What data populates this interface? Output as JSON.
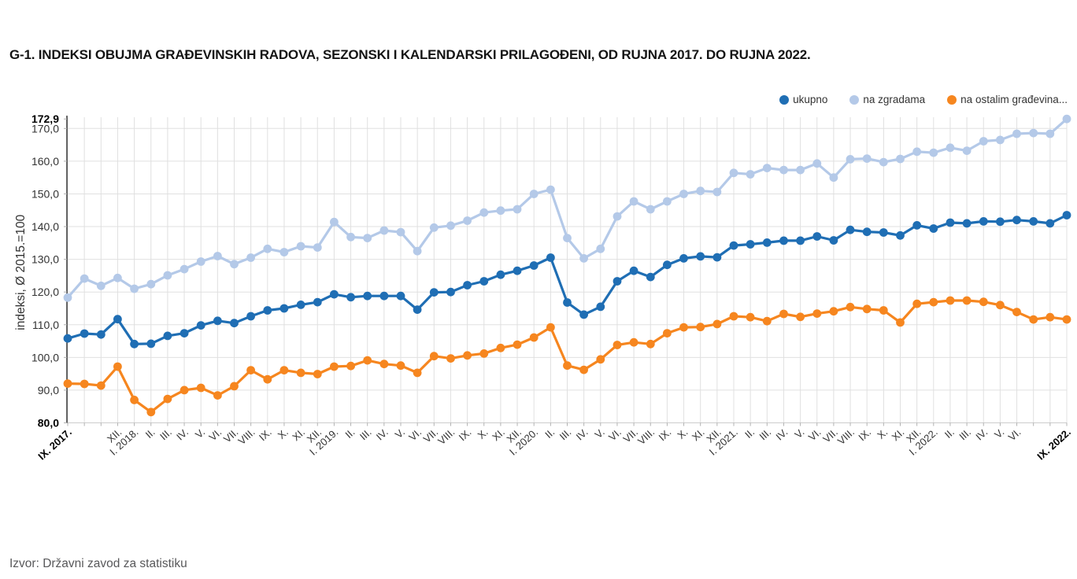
{
  "footer": {
    "source": "Izvor: Državni zavod za statistiku"
  },
  "chart_data": {
    "type": "line",
    "title": "G-1. INDEKSI OBUJMA GRAĐEVINSKIH RADOVA, SEZONSKI I KALENDARSKI PRILAGOĐENI, OD RUJNA 2017. DO RUJNA 2022.",
    "ylabel": "indeksi, Ø 2015.=100",
    "ylim": [
      80,
      172.9
    ],
    "grid": true,
    "legend_position": "top-right",
    "y_ticks": [
      {
        "value": 172.9,
        "label": "172,9",
        "bold": true
      },
      {
        "value": 170,
        "label": "170,0",
        "bold": false
      },
      {
        "value": 160,
        "label": "160,0",
        "bold": false
      },
      {
        "value": 150,
        "label": "150,0",
        "bold": false
      },
      {
        "value": 140,
        "label": "140,0",
        "bold": false
      },
      {
        "value": 130,
        "label": "130,0",
        "bold": false
      },
      {
        "value": 120,
        "label": "120,0",
        "bold": false
      },
      {
        "value": 110,
        "label": "110,0",
        "bold": false
      },
      {
        "value": 100,
        "label": "100,0",
        "bold": false
      },
      {
        "value": 90,
        "label": "90,0",
        "bold": false
      },
      {
        "value": 80,
        "label": "80,0",
        "bold": true
      }
    ],
    "categories": [
      "IX. 2017.",
      "",
      "",
      "XII.",
      "I. 2018.",
      "II.",
      "III.",
      "IV.",
      "V.",
      "VI.",
      "VII.",
      "VIII.",
      "IX.",
      "X.",
      "XI.",
      "XII.",
      "I. 2019.",
      "II.",
      "III.",
      "IV.",
      "V.",
      "VI.",
      "VII.",
      "VIII.",
      "IX.",
      "X.",
      "XI.",
      "XII.",
      "I. 2020.",
      "II.",
      "III.",
      "IV.",
      "V.",
      "VI.",
      "VII.",
      "VIII.",
      "IX.",
      "X.",
      "XI.",
      "XII.",
      "I. 2021.",
      "II.",
      "III.",
      "IV.",
      "V.",
      "VI.",
      "VII.",
      "VIII.",
      "IX.",
      "X.",
      "XI.",
      "XII.",
      "I. 2022.",
      "II.",
      "III.",
      "IV.",
      "V.",
      "VI.",
      "",
      "",
      "IX. 2022."
    ],
    "bold_category_indices": [
      0,
      60
    ],
    "series": [
      {
        "name": "ukupno",
        "color": "#1f6eb4",
        "values": [
          105.8,
          107.3,
          107.0,
          111.7,
          104.1,
          104.2,
          106.6,
          107.4,
          109.8,
          111.2,
          110.5,
          112.6,
          114.4,
          115.0,
          116.1,
          116.9,
          119.3,
          118.4,
          118.8,
          118.8,
          118.8,
          114.6,
          119.9,
          120.0,
          122.1,
          123.3,
          125.3,
          126.5,
          128.1,
          130.5,
          116.8,
          113.1,
          115.5,
          123.3,
          126.5,
          124.6,
          128.3,
          130.3,
          130.9,
          130.6,
          134.2,
          134.6,
          135.1,
          135.7,
          135.7,
          137.0,
          135.8,
          139.0,
          138.4,
          138.2,
          137.3,
          140.4,
          139.4,
          141.2,
          141.0,
          141.6,
          141.5,
          142.0,
          141.6,
          141.0,
          143.5
        ]
      },
      {
        "name": "na zgradama",
        "color": "#b4c9e8",
        "values": [
          118.3,
          124.1,
          121.9,
          124.3,
          121.0,
          122.4,
          125.1,
          127.0,
          129.3,
          131.0,
          128.5,
          130.5,
          133.2,
          132.2,
          134.0,
          133.6,
          141.4,
          136.8,
          136.5,
          138.8,
          138.3,
          132.5,
          139.7,
          140.3,
          141.8,
          144.3,
          144.9,
          145.3,
          150.0,
          151.3,
          136.5,
          130.3,
          133.2,
          143.1,
          147.7,
          145.3,
          147.7,
          150.0,
          150.9,
          150.6,
          156.4,
          156.0,
          157.9,
          157.3,
          157.3,
          159.3,
          155.0,
          160.6,
          160.8,
          159.7,
          160.7,
          162.9,
          162.6,
          164.1,
          163.2,
          166.1,
          166.5,
          168.4,
          168.6,
          168.4,
          172.9
        ]
      },
      {
        "name": "na ostalim građevina...",
        "color": "#f6861f",
        "values": [
          92.0,
          91.9,
          91.4,
          97.2,
          87.0,
          83.3,
          87.3,
          90.0,
          90.7,
          88.4,
          91.2,
          96.1,
          93.3,
          96.1,
          95.3,
          94.9,
          97.2,
          97.4,
          99.1,
          98.0,
          97.5,
          95.3,
          100.4,
          99.7,
          100.6,
          101.2,
          102.9,
          103.9,
          106.1,
          109.2,
          97.5,
          96.2,
          99.4,
          103.8,
          104.6,
          104.1,
          107.4,
          109.2,
          109.3,
          110.2,
          112.6,
          112.3,
          111.1,
          113.3,
          112.4,
          113.4,
          114.1,
          115.4,
          114.8,
          114.4,
          110.7,
          116.4,
          116.9,
          117.4,
          117.4,
          117.0,
          116.0,
          113.9,
          111.6,
          112.3,
          111.6
        ]
      }
    ],
    "colors": {
      "grid": "#e0e0e0",
      "y_axis_line": "#1a1a1a",
      "x_axis_line": "#cccccc",
      "tick": "#b0b0b0",
      "axis_label": "#333333",
      "title": "#141414",
      "source": "#58585a"
    }
  }
}
